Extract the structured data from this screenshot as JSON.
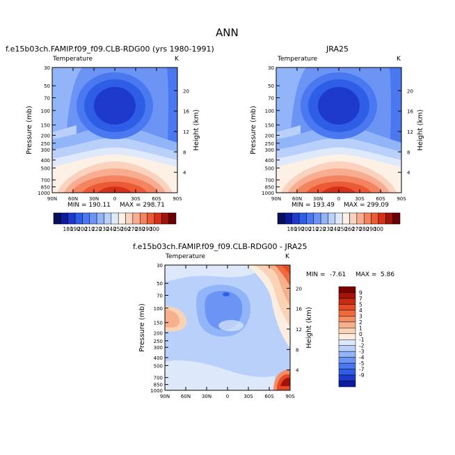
{
  "figure": {
    "title": "ANN"
  },
  "chart_data": [
    {
      "type": "heatmap",
      "title": "f.e15b03ch.FAMIP.f09_f09.CLB-RDG00 (yrs 1980-1991)",
      "subtitle": "Temperature",
      "units": "K",
      "ylabel": "Pressure (mb)",
      "ylabel_right": "Height (km)",
      "x_ticks": [
        "90N",
        "60N",
        "30N",
        "0",
        "30S",
        "60S",
        "90S"
      ],
      "y_ticks": [
        "30",
        "50",
        "70",
        "100",
        "150",
        "200",
        "250",
        "300",
        "400",
        "500",
        "700",
        "850",
        "1000"
      ],
      "y_right_ticks": [
        "20",
        "16",
        "12",
        "8",
        "4"
      ],
      "min_label": "MIN = 190.11",
      "max_label": "MAX = 298.71",
      "min": 190.11,
      "max": 298.71
    },
    {
      "type": "heatmap",
      "title": "JRA25",
      "subtitle": "Temperature",
      "units": "K",
      "ylabel": "Pressure (mb)",
      "ylabel_right": "Height (km)",
      "x_ticks": [
        "90N",
        "60N",
        "30N",
        "0",
        "30S",
        "60S",
        "90S"
      ],
      "y_ticks": [
        "30",
        "50",
        "70",
        "100",
        "150",
        "200",
        "250",
        "300",
        "400",
        "500",
        "700",
        "850",
        "1000"
      ],
      "y_right_ticks": [
        "20",
        "16",
        "12",
        "8",
        "4"
      ],
      "min_label": "MIN = 193.49",
      "max_label": "MAX = 299.09",
      "min": 193.49,
      "max": 299.09
    },
    {
      "type": "heatmap",
      "title": "f.e15b03ch.FAMIP.f09_f09.CLB-RDG00 - JRA25",
      "subtitle": "Temperature",
      "units": "K",
      "ylabel": "Pressure (mb)",
      "ylabel_right": "Height (km)",
      "x_ticks": [
        "90N",
        "60N",
        "30N",
        "0",
        "30S",
        "60S",
        "90S"
      ],
      "y_ticks": [
        "30",
        "50",
        "70",
        "100",
        "150",
        "200",
        "250",
        "300",
        "400",
        "500",
        "700",
        "850",
        "1000"
      ],
      "y_right_ticks": [
        "20",
        "16",
        "12",
        "8",
        "4"
      ],
      "min_label": "MIN =",
      "min_value": "-7.61",
      "max_label": "MAX =",
      "max_value": "5.86",
      "min": -7.61,
      "max": 5.86
    }
  ],
  "colorbar_abs": {
    "labels": [
      "180",
      "190",
      "200",
      "210",
      "220",
      "230",
      "240",
      "250",
      "260",
      "270",
      "280",
      "290",
      "300"
    ],
    "colors": [
      "#08105c",
      "#0c1c9c",
      "#1d3acd",
      "#2e5ee6",
      "#4a78f0",
      "#6c94f4",
      "#92b4f8",
      "#b8d0fa",
      "#dfe9fc",
      "#fdf1e6",
      "#fbd2bd",
      "#f8ad91",
      "#f4845f",
      "#ec5a35",
      "#d4311a",
      "#9e1408",
      "#6a0000"
    ]
  },
  "colorbar_diff": {
    "labels": [
      "9",
      "7",
      "5",
      "4",
      "3",
      "2",
      "1",
      "0",
      "-1",
      "-2",
      "-3",
      "-4",
      "-5",
      "-7",
      "-9"
    ],
    "colors": [
      "#7a0000",
      "#a41208",
      "#c82a12",
      "#e44a24",
      "#f06a3e",
      "#f58c64",
      "#f8b08c",
      "#fad3b6",
      "#fbede0",
      "#dde9fb",
      "#b8d0fa",
      "#92b4f8",
      "#6c94f4",
      "#4a78f0",
      "#2e5ee6",
      "#1d3acd",
      "#0c1c9c"
    ]
  }
}
